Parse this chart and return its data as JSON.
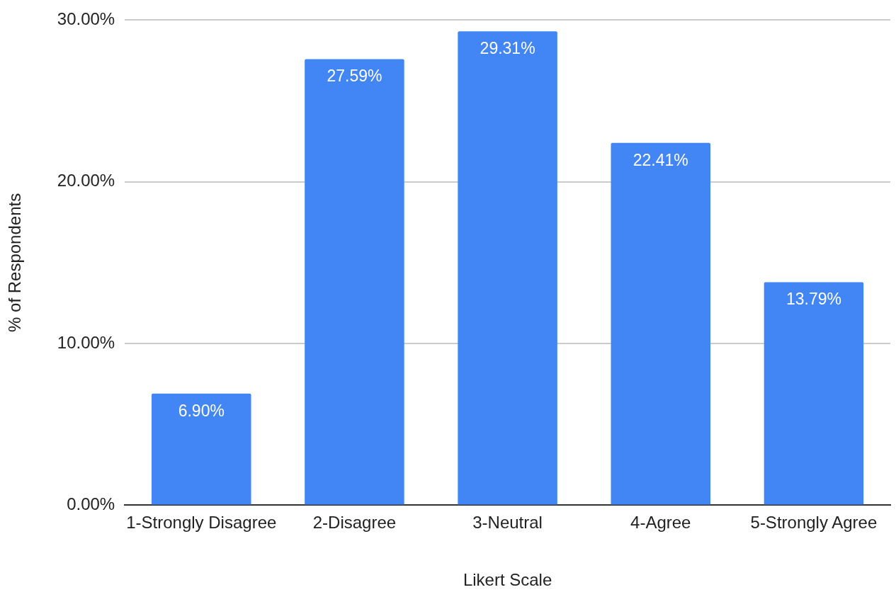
{
  "chart_data": {
    "type": "bar",
    "xlabel": "Likert Scale",
    "ylabel": "% of Respondents",
    "categories": [
      "1-Strongly Disagree",
      "2-Disagree",
      "3-Neutral",
      "4-Agree",
      "5-Strongly Agree"
    ],
    "values": [
      6.9,
      27.59,
      29.31,
      22.41,
      13.79
    ],
    "value_labels": [
      "6.90%",
      "27.59%",
      "29.31%",
      "22.41%",
      "13.79%"
    ],
    "color": "#4285f4",
    "ylim": [
      0,
      30
    ],
    "yticks": [
      {
        "value": 0,
        "label": "0.00%"
      },
      {
        "value": 10,
        "label": "10.00%"
      },
      {
        "value": 20,
        "label": "20.00%"
      },
      {
        "value": 30,
        "label": "30.00%"
      }
    ],
    "grid": "y",
    "legend": false
  }
}
